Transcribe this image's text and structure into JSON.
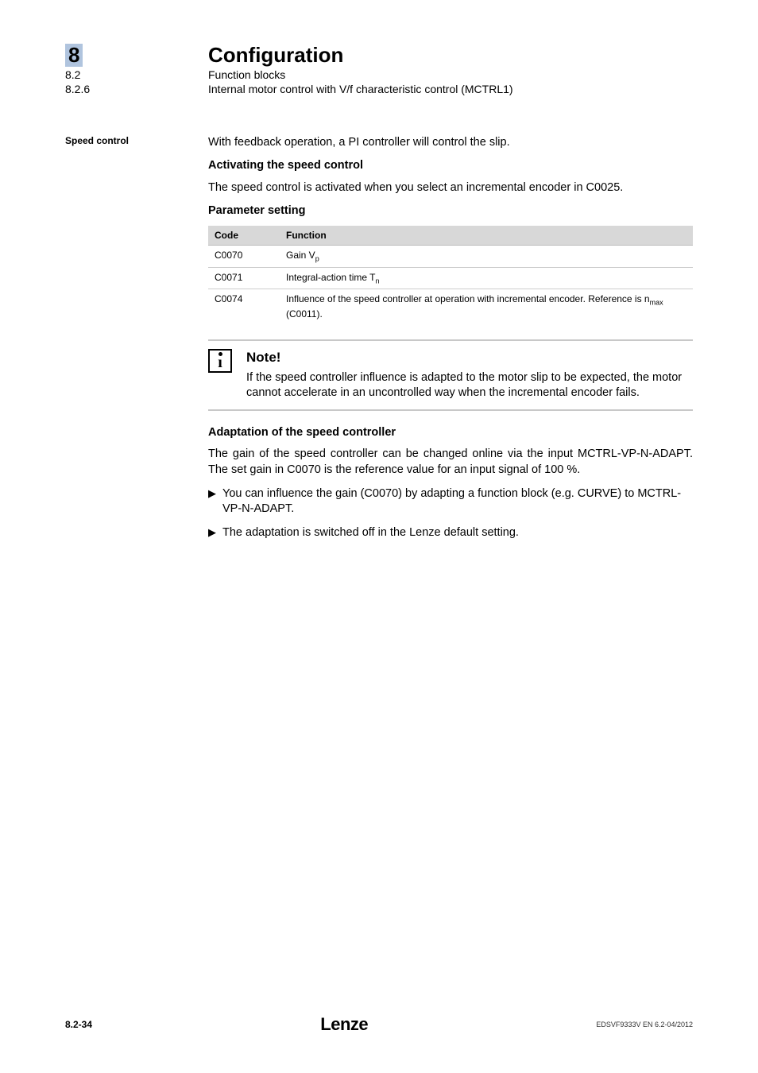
{
  "header": {
    "chapter_num": "8",
    "section_num": "8.2",
    "subsection_num": "8.2.6",
    "chapter_title": "Configuration",
    "section_title": "Function blocks",
    "subsection_title": "Internal motor control with V/f characteristic control (MCTRL1)"
  },
  "margin_label": "Speed control",
  "intro_para": "With feedback operation, a PI controller will control the slip.",
  "h_activating": "Activating the speed control",
  "activating_para": "The speed control is activated when you select an incremental encoder in C0025.",
  "h_param": "Parameter setting",
  "table": {
    "head_code": "Code",
    "head_func": "Function",
    "rows": [
      {
        "code": "C0070",
        "func_pre": "Gain V",
        "func_sub": "p",
        "func_post": ""
      },
      {
        "code": "C0071",
        "func_pre": "Integral-action time  T",
        "func_sub": "n",
        "func_post": ""
      },
      {
        "code": "C0074",
        "func_pre": "Influence of the speed controller at operation with incremental encoder. Reference is n",
        "func_sub": "max",
        "func_post": " (C0011)."
      }
    ]
  },
  "note": {
    "title": "Note!",
    "body": "If the speed controller influence is adapted to the motor slip to be expected, the motor cannot accelerate in an uncontrolled way when the incremental encoder fails."
  },
  "h_adapt": "Adaptation of the speed controller",
  "adapt_para": "The gain of the speed controller can be changed online via the input MCTRL-VP-N-ADAPT. The set gain in C0070 is the reference value for an input signal of 100 %.",
  "bullets": [
    "You can influence the gain (C0070) by adapting a function block (e.g. CURVE) to MCTRL-VP-N-ADAPT.",
    "The adaptation is switched off in the Lenze default setting."
  ],
  "footer": {
    "page": "8.2-34",
    "brand": "Lenze",
    "docref": "EDSVF9333V EN 6.2-04/2012"
  },
  "colors": {
    "highlight": "#b0c4de",
    "table_header": "#d8d8d8",
    "note_bar": "#c8c8c8"
  }
}
